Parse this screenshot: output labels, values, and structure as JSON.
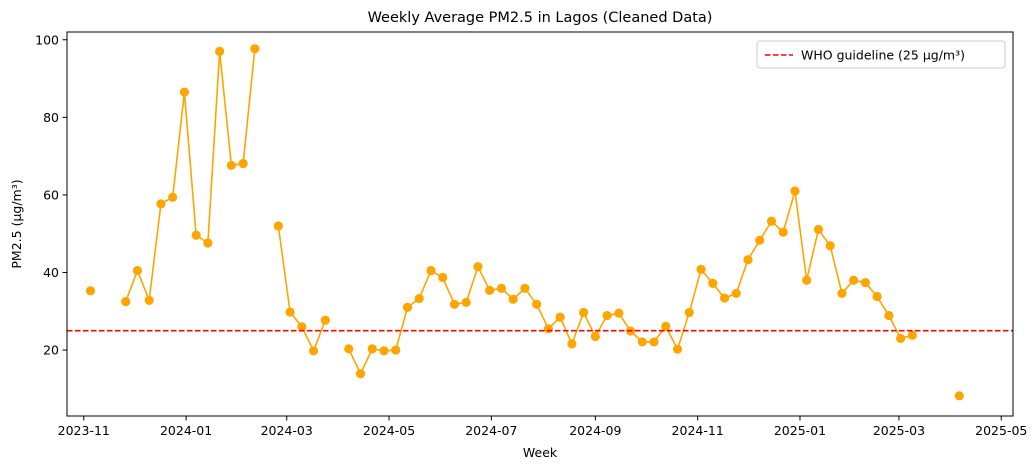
{
  "chart_data": {
    "type": "line",
    "title": "Weekly Average PM2.5 in Lagos (Cleaned Data)",
    "xlabel": "Week",
    "ylabel": "PM2.5 (µg/m³)",
    "xlim": [
      "2023-10-22",
      "2025-05-08"
    ],
    "ylim": [
      3,
      102
    ],
    "xticks": [
      "2023-11",
      "2024-01",
      "2024-03",
      "2024-05",
      "2024-07",
      "2024-09",
      "2024-11",
      "2025-01",
      "2025-03",
      "2025-05"
    ],
    "yticks": [
      20,
      40,
      60,
      80,
      100
    ],
    "grid": false,
    "legend_position": "top-right",
    "colors": {
      "series": "#ffa500",
      "guideline": "#ff0000"
    },
    "series": [
      {
        "x": [
          "2023-11-05",
          "2023-11-12",
          "2023-11-19",
          "2023-11-26",
          "2023-12-03",
          "2023-12-10",
          "2023-12-17",
          "2023-12-24",
          "2023-12-31",
          "2024-01-07",
          "2024-01-14",
          "2024-01-21",
          "2024-01-28",
          "2024-02-04",
          "2024-02-11",
          "2024-02-18",
          "2024-02-25",
          "2024-03-03",
          "2024-03-10",
          "2024-03-17",
          "2024-03-24",
          "2024-03-31",
          "2024-04-07",
          "2024-04-14",
          "2024-04-21",
          "2024-04-28",
          "2024-05-05",
          "2024-05-12",
          "2024-05-19",
          "2024-05-26",
          "2024-06-02",
          "2024-06-09",
          "2024-06-16",
          "2024-06-23",
          "2024-06-30",
          "2024-07-07",
          "2024-07-14",
          "2024-07-21",
          "2024-07-28",
          "2024-08-04",
          "2024-08-11",
          "2024-08-18",
          "2024-08-25",
          "2024-09-01",
          "2024-09-08",
          "2024-09-15",
          "2024-09-22",
          "2024-09-29",
          "2024-10-06",
          "2024-10-13",
          "2024-10-20",
          "2024-10-27",
          "2024-11-03",
          "2024-11-10",
          "2024-11-17",
          "2024-11-24",
          "2024-12-01",
          "2024-12-08",
          "2024-12-15",
          "2024-12-22",
          "2024-12-29",
          "2025-01-05",
          "2025-01-12",
          "2025-01-19",
          "2025-01-26",
          "2025-02-02",
          "2025-02-09",
          "2025-02-16",
          "2025-02-23",
          "2025-03-02",
          "2025-03-09",
          "2025-03-16",
          "2025-03-23",
          "2025-03-30",
          "2025-04-06"
        ],
        "values": [
          35.3,
          null,
          null,
          32.5,
          40.5,
          32.8,
          57.7,
          59.4,
          86.5,
          49.6,
          47.6,
          97.0,
          67.6,
          68.1,
          97.7,
          null,
          52.0,
          29.8,
          26.0,
          19.8,
          27.7,
          null,
          20.3,
          13.9,
          20.3,
          19.8,
          20.0,
          31.0,
          33.3,
          40.5,
          38.7,
          31.8,
          32.3,
          41.5,
          35.4,
          35.9,
          33.1,
          35.9,
          31.8,
          25.5,
          28.5,
          21.6,
          29.7,
          23.5,
          28.9,
          29.5,
          24.9,
          22.1,
          22.1,
          26.1,
          20.2,
          29.7,
          40.8,
          37.2,
          33.4,
          34.6,
          43.3,
          48.3,
          53.2,
          50.4,
          61.0,
          38.0,
          51.1,
          46.9,
          34.6,
          38.0,
          37.4,
          33.8,
          28.9,
          23.0,
          23.8,
          null,
          null,
          null,
          8.2
        ]
      }
    ],
    "guideline": {
      "label": "WHO guideline (25 µg/m³)",
      "value": 25
    }
  }
}
